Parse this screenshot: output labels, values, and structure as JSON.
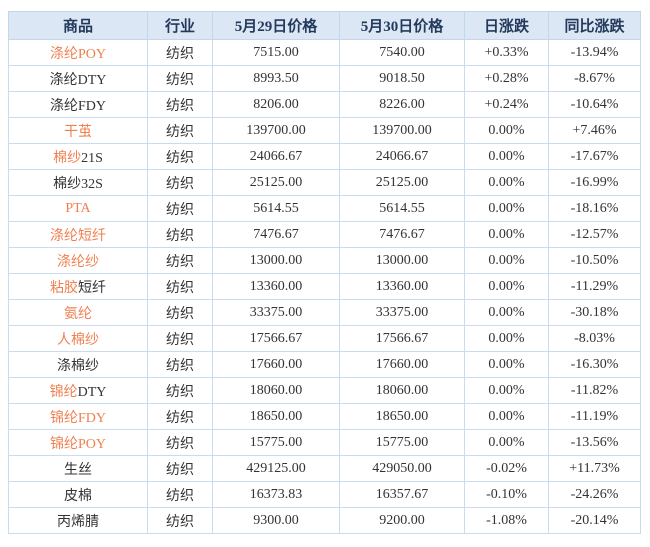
{
  "colors": {
    "link_orange": "#f08050",
    "up_red": "#e00000",
    "down_green": "#008000",
    "neutral_text": "#333333",
    "header_text": "#24395b",
    "header_bg": "#dbe7f4",
    "border_blue": "#c9dbee"
  },
  "table": {
    "headers": [
      {
        "label": "商品"
      },
      {
        "label": "行业"
      },
      {
        "label": "5月29日价格"
      },
      {
        "label": "5月30日价格"
      },
      {
        "label": "日涨跌"
      },
      {
        "label": "同比涨跌"
      }
    ],
    "rows": [
      {
        "product": [
          {
            "text": "涤纶POY",
            "style": "link"
          }
        ],
        "industry": "纺织",
        "price_0529": "7515.00",
        "price_0530": "7540.00",
        "daily_change": "+0.33%",
        "daily_style": "up",
        "yoy_change": "-13.94%",
        "yoy_style": "down"
      },
      {
        "product": [
          {
            "text": "涤纶DTY",
            "style": "plain"
          }
        ],
        "industry": "纺织",
        "price_0529": "8993.50",
        "price_0530": "9018.50",
        "daily_change": "+0.28%",
        "daily_style": "up",
        "yoy_change": "-8.67%",
        "yoy_style": "down"
      },
      {
        "product": [
          {
            "text": "涤纶FDY",
            "style": "plain"
          }
        ],
        "industry": "纺织",
        "price_0529": "8206.00",
        "price_0530": "8226.00",
        "daily_change": "+0.24%",
        "daily_style": "up",
        "yoy_change": "-10.64%",
        "yoy_style": "down"
      },
      {
        "product": [
          {
            "text": "干茧",
            "style": "link"
          }
        ],
        "industry": "纺织",
        "price_0529": "139700.00",
        "price_0530": "139700.00",
        "daily_change": "0.00%",
        "daily_style": "flat",
        "yoy_change": "+7.46%",
        "yoy_style": "up"
      },
      {
        "product": [
          {
            "text": "棉纱",
            "style": "link"
          },
          {
            "text": "21S",
            "style": "plain"
          }
        ],
        "industry": "纺织",
        "price_0529": "24066.67",
        "price_0530": "24066.67",
        "daily_change": "0.00%",
        "daily_style": "flat",
        "yoy_change": "-17.67%",
        "yoy_style": "down"
      },
      {
        "product": [
          {
            "text": "棉纱32S",
            "style": "plain"
          }
        ],
        "industry": "纺织",
        "price_0529": "25125.00",
        "price_0530": "25125.00",
        "daily_change": "0.00%",
        "daily_style": "flat",
        "yoy_change": "-16.99%",
        "yoy_style": "down"
      },
      {
        "product": [
          {
            "text": "PTA",
            "style": "link"
          }
        ],
        "industry": "纺织",
        "price_0529": "5614.55",
        "price_0530": "5614.55",
        "daily_change": "0.00%",
        "daily_style": "flat",
        "yoy_change": "-18.16%",
        "yoy_style": "down"
      },
      {
        "product": [
          {
            "text": "涤纶短纤",
            "style": "link"
          }
        ],
        "industry": "纺织",
        "price_0529": "7476.67",
        "price_0530": "7476.67",
        "daily_change": "0.00%",
        "daily_style": "flat",
        "yoy_change": "-12.57%",
        "yoy_style": "down"
      },
      {
        "product": [
          {
            "text": "涤纶纱",
            "style": "link"
          }
        ],
        "industry": "纺织",
        "price_0529": "13000.00",
        "price_0530": "13000.00",
        "daily_change": "0.00%",
        "daily_style": "flat",
        "yoy_change": "-10.50%",
        "yoy_style": "down"
      },
      {
        "product": [
          {
            "text": "粘胶",
            "style": "link"
          },
          {
            "text": "短纤",
            "style": "plain"
          }
        ],
        "industry": "纺织",
        "price_0529": "13360.00",
        "price_0530": "13360.00",
        "daily_change": "0.00%",
        "daily_style": "flat",
        "yoy_change": "-11.29%",
        "yoy_style": "down"
      },
      {
        "product": [
          {
            "text": "氨纶",
            "style": "link"
          }
        ],
        "industry": "纺织",
        "price_0529": "33375.00",
        "price_0530": "33375.00",
        "daily_change": "0.00%",
        "daily_style": "flat",
        "yoy_change": "-30.18%",
        "yoy_style": "down"
      },
      {
        "product": [
          {
            "text": "人棉纱",
            "style": "link"
          }
        ],
        "industry": "纺织",
        "price_0529": "17566.67",
        "price_0530": "17566.67",
        "daily_change": "0.00%",
        "daily_style": "flat",
        "yoy_change": "-8.03%",
        "yoy_style": "down"
      },
      {
        "product": [
          {
            "text": "涤棉纱",
            "style": "plain"
          }
        ],
        "industry": "纺织",
        "price_0529": "17660.00",
        "price_0530": "17660.00",
        "daily_change": "0.00%",
        "daily_style": "flat",
        "yoy_change": "-16.30%",
        "yoy_style": "down"
      },
      {
        "product": [
          {
            "text": "锦纶",
            "style": "link"
          },
          {
            "text": "DTY",
            "style": "plain"
          }
        ],
        "industry": "纺织",
        "price_0529": "18060.00",
        "price_0530": "18060.00",
        "daily_change": "0.00%",
        "daily_style": "flat",
        "yoy_change": "-11.82%",
        "yoy_style": "down"
      },
      {
        "product": [
          {
            "text": "锦纶FDY",
            "style": "link"
          }
        ],
        "industry": "纺织",
        "price_0529": "18650.00",
        "price_0530": "18650.00",
        "daily_change": "0.00%",
        "daily_style": "flat",
        "yoy_change": "-11.19%",
        "yoy_style": "down"
      },
      {
        "product": [
          {
            "text": "锦纶POY",
            "style": "link"
          }
        ],
        "industry": "纺织",
        "price_0529": "15775.00",
        "price_0530": "15775.00",
        "daily_change": "0.00%",
        "daily_style": "flat",
        "yoy_change": "-13.56%",
        "yoy_style": "down"
      },
      {
        "product": [
          {
            "text": "生丝",
            "style": "plain"
          }
        ],
        "industry": "纺织",
        "price_0529": "429125.00",
        "price_0530": "429050.00",
        "daily_change": "-0.02%",
        "daily_style": "down",
        "yoy_change": "+11.73%",
        "yoy_style": "up"
      },
      {
        "product": [
          {
            "text": "皮棉",
            "style": "plain"
          }
        ],
        "industry": "纺织",
        "price_0529": "16373.83",
        "price_0530": "16357.67",
        "daily_change": "-0.10%",
        "daily_style": "down",
        "yoy_change": "-24.26%",
        "yoy_style": "down"
      },
      {
        "product": [
          {
            "text": "丙烯腈",
            "style": "plain"
          }
        ],
        "industry": "纺织",
        "price_0529": "9300.00",
        "price_0530": "9200.00",
        "daily_change": "-1.08%",
        "daily_style": "down",
        "yoy_change": "-20.14%",
        "yoy_style": "down"
      }
    ]
  }
}
